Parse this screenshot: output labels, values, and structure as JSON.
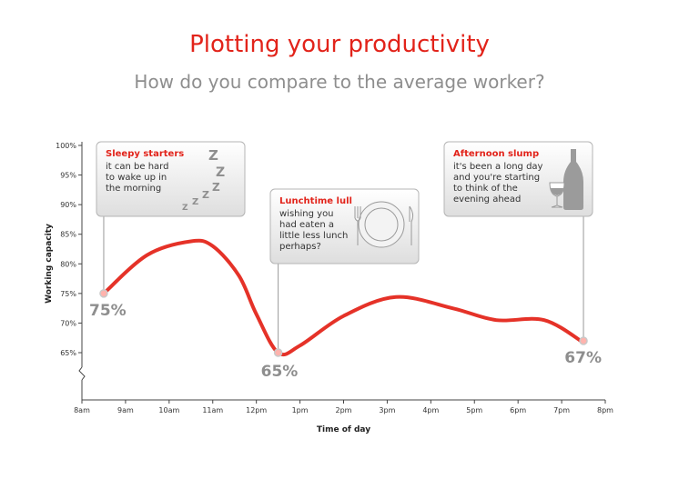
{
  "header": {
    "title": "Plotting your productivity",
    "subtitle": "How do you compare to the average worker?"
  },
  "colors": {
    "accent": "#e2231a",
    "line": "#e53228",
    "muted": "#8e8e8e",
    "callout_fill": "#ececec",
    "callout_border": "#b5b5b5"
  },
  "chart_data": {
    "type": "line",
    "xlabel": "Time of day",
    "ylabel": "Working capacity",
    "x_ticks": [
      "8am",
      "9am",
      "10am",
      "11am",
      "12pm",
      "1pm",
      "2pm",
      "3pm",
      "4pm",
      "5pm",
      "6pm",
      "7pm",
      "8pm"
    ],
    "xlim": [
      8,
      20
    ],
    "y_ticks": [
      "65%",
      "70%",
      "75%",
      "80%",
      "85%",
      "90%",
      "95%",
      "100%"
    ],
    "ylim": [
      65,
      100
    ],
    "axis_break": true,
    "grid": false,
    "series": [
      {
        "points": [
          {
            "x": 8.5,
            "y": 75
          },
          {
            "x": 9.5,
            "y": 81.5
          },
          {
            "x": 10.5,
            "y": 83.8
          },
          {
            "x": 11.0,
            "y": 83.0
          },
          {
            "x": 11.6,
            "y": 78
          },
          {
            "x": 12.0,
            "y": 71.5
          },
          {
            "x": 12.5,
            "y": 65
          },
          {
            "x": 13.0,
            "y": 66.2
          },
          {
            "x": 14.0,
            "y": 71.2
          },
          {
            "x": 15.2,
            "y": 74.4
          },
          {
            "x": 16.5,
            "y": 72.5
          },
          {
            "x": 17.5,
            "y": 70.5
          },
          {
            "x": 18.6,
            "y": 70.5
          },
          {
            "x": 19.5,
            "y": 66.7
          }
        ]
      }
    ],
    "highlights": [
      {
        "x": 8.5,
        "y": 75,
        "label": "75%"
      },
      {
        "x": 12.5,
        "y": 65,
        "label": "65%"
      },
      {
        "x": 19.5,
        "y": 67,
        "label": "67%"
      }
    ],
    "callouts": [
      {
        "anchor_x": 8.5,
        "title": "Sleepy starters",
        "lines": [
          "it can be hard",
          "to wake up in",
          "the morning"
        ],
        "icon": "sleep-zzz-icon",
        "zz": [
          "Z",
          "Z",
          "Z",
          "Z",
          "Z",
          "Z"
        ]
      },
      {
        "anchor_x": 12.5,
        "title": "Lunchtime lull",
        "lines": [
          "wishing you",
          "had eaten a",
          "little less lunch",
          "perhaps?"
        ],
        "icon": "plate-cutlery-icon"
      },
      {
        "anchor_x": 19.5,
        "title": "Afternoon slump",
        "lines": [
          "it's been a long day",
          "and you're starting",
          "to think of the",
          "evening ahead"
        ],
        "icon": "wine-bottle-glass-icon"
      }
    ]
  }
}
